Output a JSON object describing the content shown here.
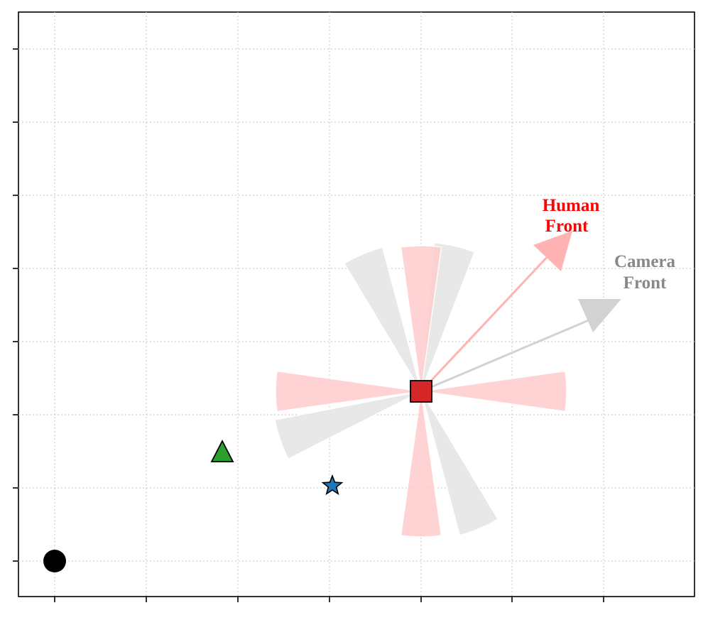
{
  "colors": {
    "human": "#ff0000",
    "human_sector": "#ffcccc",
    "human_arrow": "#ffb3b3",
    "camera": "#888888",
    "camera_sector": "#e6e6e6",
    "camera_arrow": "#d2d2d2",
    "square": "#d62728",
    "triangle": "#2ca02c",
    "star": "#1f77b4",
    "circle": "#000000",
    "grid": "#cfcfcf"
  },
  "labels": {
    "human_front_line1": "Human",
    "human_front_line2": "Front",
    "camera_front_line1": "Camera",
    "camera_front_line2": "Front"
  },
  "icons": {
    "human_marker": "square",
    "triangle_marker": "triangle",
    "star_marker": "star",
    "circle_marker": "circle"
  },
  "diagram": {
    "grid": true,
    "x_ticks": 8,
    "y_ticks": 8,
    "human_front_angle_deg": 42,
    "camera_front_angle_deg": 23,
    "human_sectors_deg": [
      0,
      90,
      180,
      270
    ],
    "camera_sectors_deg": [
      23,
      113,
      203,
      293
    ],
    "sector_half_width_deg": 8
  }
}
